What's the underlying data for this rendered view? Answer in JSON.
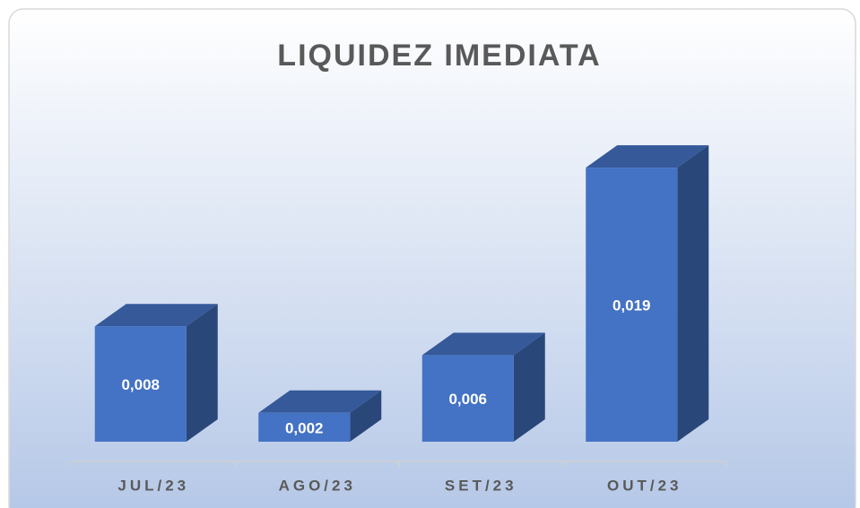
{
  "chart_data": {
    "type": "bar3d",
    "title": "LIQUIDEZ IMEDIATA",
    "categories": [
      "JUL/23",
      "AGO/23",
      "SET/23",
      "OUT/23"
    ],
    "values": [
      0.008,
      0.002,
      0.006,
      0.019
    ],
    "value_labels": [
      "0,008",
      "0,002",
      "0,006",
      "0,019"
    ],
    "color": "#4472c4"
  }
}
